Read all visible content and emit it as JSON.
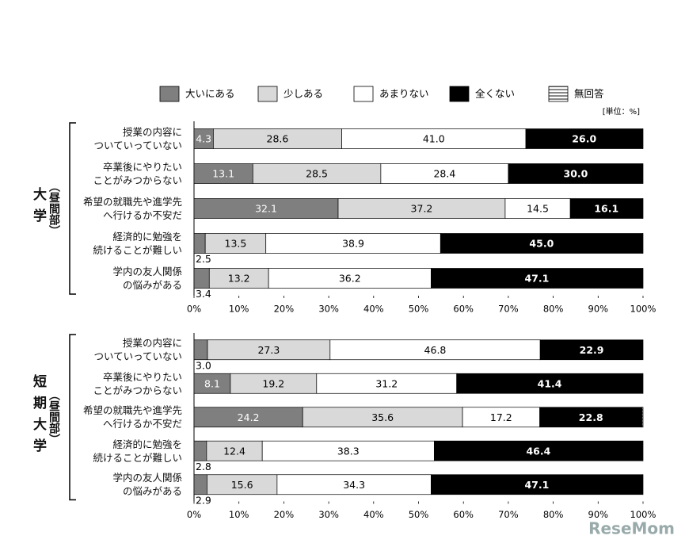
{
  "unit": "[単位：%]",
  "watermark": "ReseMom",
  "chart_data": [
    {
      "type": "stacked-bar",
      "orientation": "horizontal",
      "group_label": "大学",
      "group_sublabel": "（昼間部）",
      "categories": [
        "授業の内容に\nついていっていない",
        "卒業後にやりたい\nことがみつからない",
        "希望の就職先や進学先\nへ行けるか不安だ",
        "経済的に勉強を\n続けることが難しい",
        "学内の友人関係\nの悩みがある"
      ],
      "series": [
        {
          "name": "大いにある",
          "color": "#7f7f7f",
          "values": [
            4.3,
            13.1,
            32.1,
            2.5,
            3.4
          ],
          "value_labels": [
            "4.3",
            "13.1",
            "32.1",
            "2.5",
            "3.4"
          ]
        },
        {
          "name": "少しある",
          "color": "#d9d9d9",
          "values": [
            28.6,
            28.5,
            37.2,
            13.5,
            13.2
          ],
          "value_labels": [
            "28.6",
            "28.5",
            "37.2",
            "13.5",
            "13.2"
          ]
        },
        {
          "name": "あまりない",
          "color": "#ffffff",
          "values": [
            41.0,
            28.4,
            14.5,
            38.9,
            36.2
          ],
          "value_labels": [
            "41.0",
            "28.4",
            "14.5",
            "38.9",
            "36.2"
          ]
        },
        {
          "name": "全くない",
          "color": "#000000",
          "values": [
            26.0,
            30.0,
            16.1,
            45.0,
            47.1
          ],
          "value_labels": [
            "26.0",
            "30.0",
            "16.1",
            "45.0",
            "47.1"
          ]
        },
        {
          "name": "無回答",
          "color": "#888888",
          "pattern": "horizontal-stripes",
          "values": [
            0.1,
            0,
            0.1,
            0.1,
            0.1
          ]
        }
      ],
      "xlim": [
        0,
        100
      ],
      "xticks": [
        {
          "value": 0,
          "label": "0%"
        },
        {
          "value": 10,
          "label": "10%"
        },
        {
          "value": 20,
          "label": "20%"
        },
        {
          "value": 30,
          "label": "30%"
        },
        {
          "value": 40,
          "label": "40%"
        },
        {
          "value": 50,
          "label": "50%"
        },
        {
          "value": 60,
          "label": "60%"
        },
        {
          "value": 70,
          "label": "70%"
        },
        {
          "value": 80,
          "label": "80%"
        },
        {
          "value": 90,
          "label": "90%"
        },
        {
          "value": 100,
          "label": "100%"
        }
      ],
      "grid": false
    },
    {
      "type": "stacked-bar",
      "orientation": "horizontal",
      "group_label": "短期大学",
      "group_sublabel": "（昼間部）",
      "categories": [
        "授業の内容に\nついていっていない",
        "卒業後にやりたい\nことがみつからない",
        "希望の就職先や進学先\nへ行けるか不安だ",
        "経済的に勉強を\n続けることが難しい",
        "学内の友人関係\nの悩みがある"
      ],
      "series": [
        {
          "name": "大いにある",
          "color": "#7f7f7f",
          "values": [
            3.0,
            8.1,
            24.2,
            2.8,
            2.9
          ],
          "value_labels": [
            "3.0",
            "8.1",
            "24.2",
            "2.8",
            "2.9"
          ]
        },
        {
          "name": "少しある",
          "color": "#d9d9d9",
          "values": [
            27.3,
            19.2,
            35.6,
            12.4,
            15.6
          ],
          "value_labels": [
            "27.3",
            "19.2",
            "35.6",
            "12.4",
            "15.6"
          ]
        },
        {
          "name": "あまりない",
          "color": "#ffffff",
          "values": [
            46.8,
            31.2,
            17.2,
            38.3,
            34.3
          ],
          "value_labels": [
            "46.8",
            "31.2",
            "17.2",
            "38.3",
            "34.3"
          ]
        },
        {
          "name": "全くない",
          "color": "#000000",
          "values": [
            22.9,
            41.4,
            22.8,
            46.4,
            47.1
          ],
          "value_labels": [
            "22.9",
            "41.4",
            "22.8",
            "46.4",
            "47.1"
          ]
        },
        {
          "name": "無回答",
          "color": "#888888",
          "pattern": "horizontal-stripes",
          "values": [
            0,
            0.1,
            0.2,
            0.1,
            0.1
          ]
        }
      ],
      "xlim": [
        0,
        100
      ],
      "xticks": [
        {
          "value": 0,
          "label": "0%"
        },
        {
          "value": 10,
          "label": "10%"
        },
        {
          "value": 20,
          "label": "20%"
        },
        {
          "value": 30,
          "label": "30%"
        },
        {
          "value": 40,
          "label": "40%"
        },
        {
          "value": 50,
          "label": "50%"
        },
        {
          "value": 60,
          "label": "60%"
        },
        {
          "value": 70,
          "label": "70%"
        },
        {
          "value": 80,
          "label": "80%"
        },
        {
          "value": 90,
          "label": "90%"
        },
        {
          "value": 100,
          "label": "100%"
        }
      ],
      "grid": false
    }
  ]
}
